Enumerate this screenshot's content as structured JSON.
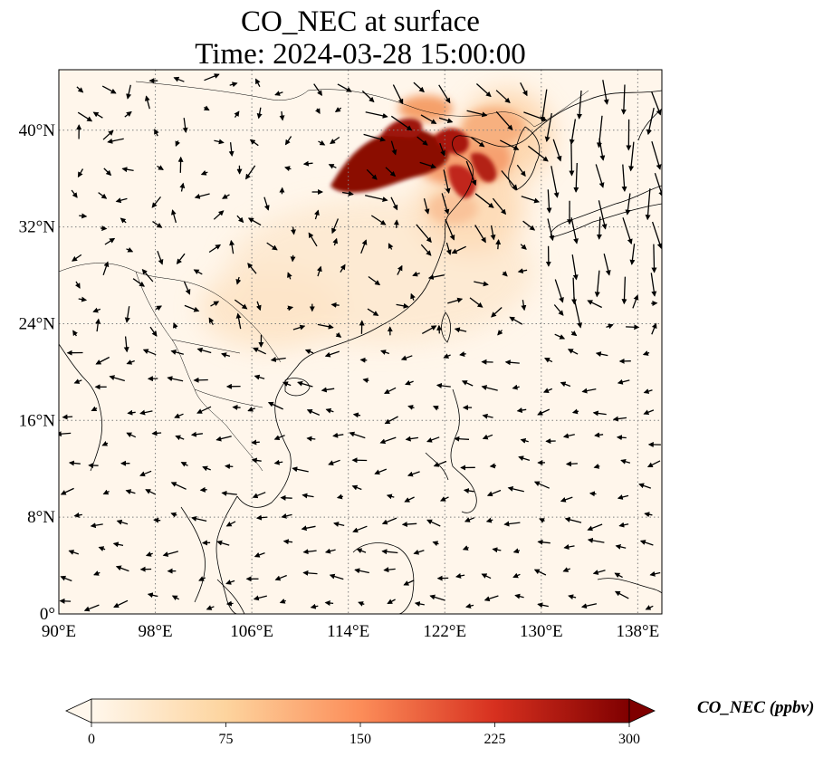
{
  "title": {
    "line1": "CO_NEC at surface",
    "line2": "Time: 2024-03-28 15:00:00"
  },
  "map": {
    "extent": {
      "lon_min": 90,
      "lon_max": 140,
      "lat_min": 0,
      "lat_max": 45
    },
    "lon_ticks": [
      90,
      98,
      106,
      114,
      122,
      130,
      138
    ],
    "lon_tick_labels": [
      "90°E",
      "98°E",
      "106°E",
      "114°E",
      "122°E",
      "130°E",
      "138°E"
    ],
    "lat_ticks": [
      0,
      8,
      16,
      24,
      32,
      40
    ],
    "lat_tick_labels": [
      "0°",
      "8°N",
      "16°N",
      "24°N",
      "32°N",
      "40°N"
    ],
    "gridlines": true,
    "coastlines": true,
    "country_borders": true,
    "wind_vectors": true
  },
  "colorbar": {
    "label": "CO_NEC (ppbv)",
    "colormap": "OrRd",
    "vmin": 0,
    "vmax": 300,
    "ticks": [
      0,
      75,
      150,
      225,
      300
    ],
    "tick_labels": [
      "0",
      "75",
      "150",
      "225",
      "300"
    ],
    "extend": "both",
    "orientation": "horizontal"
  },
  "colors": {
    "low": "#fff7ec",
    "mid": "#fdbb84",
    "high": "#d7301f",
    "max": "#7f0000"
  }
}
